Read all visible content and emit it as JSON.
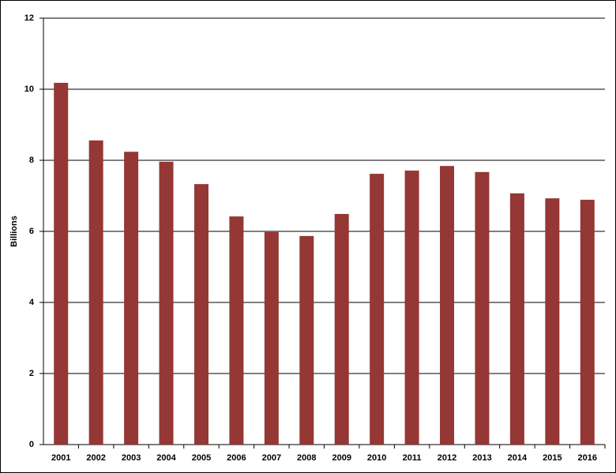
{
  "chart_data": {
    "type": "bar",
    "y_label": "Billions",
    "categories": [
      "2001",
      "2002",
      "2003",
      "2004",
      "2005",
      "2006",
      "2007",
      "2008",
      "2009",
      "2010",
      "2011",
      "2012",
      "2013",
      "2014",
      "2015",
      "2016"
    ],
    "values": [
      10.18,
      8.56,
      8.24,
      7.96,
      7.33,
      6.42,
      5.98,
      5.87,
      6.49,
      7.62,
      7.71,
      7.84,
      7.67,
      7.07,
      6.93,
      6.89
    ],
    "color": "#953735",
    "ylim": [
      0,
      12
    ],
    "yticks": [
      0,
      2,
      4,
      6,
      8,
      10,
      12
    ],
    "grid": true
  }
}
